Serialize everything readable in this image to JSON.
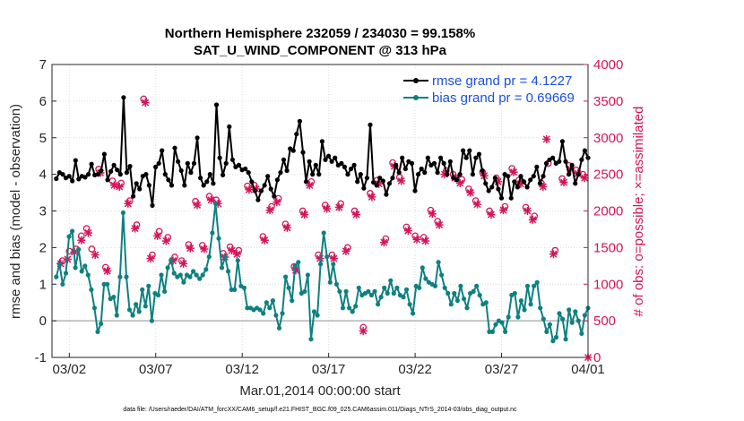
{
  "chart_data": {
    "type": "line",
    "title": "Northern Hemisphere 232059 / 234030 = 99.158%",
    "subtitle": "SAT_U_WIND_COMPONENT @ 313 hPa",
    "xlabel": "Mar.01,2014 00:00:00 start",
    "ylabel_left": "rmse and bias (model - observation)",
    "ylabel_right": "# of obs: o=possible; ×=assimilated",
    "x_range_days": [
      0.5,
      31.5
    ],
    "x_tick_labels": [
      "03/02",
      "03/07",
      "03/12",
      "03/17",
      "03/22",
      "03/27",
      "04/01"
    ],
    "x_tick_days": [
      1.5,
      6.5,
      11.5,
      16.5,
      21.5,
      26.5,
      31.5
    ],
    "ylim_left": [
      -1,
      7
    ],
    "yticks_left": [
      "-1",
      "0",
      "1",
      "2",
      "3",
      "4",
      "5",
      "6",
      "7"
    ],
    "ylim_right": [
      0,
      4000
    ],
    "yticks_right": [
      "0",
      "500",
      "1000",
      "1500",
      "2000",
      "2500",
      "3000",
      "3500",
      "4000"
    ],
    "zero_line": 0,
    "series": [
      {
        "name": "rmse grand pr = 4.1227",
        "color": "#000000",
        "values": [
          3.88,
          4.05,
          4.0,
          3.9,
          3.95,
          3.82,
          4.38,
          3.87,
          3.95,
          3.92,
          4.0,
          4.28,
          3.98,
          4.0,
          4.1,
          4.55,
          3.85,
          4.08,
          4.25,
          4.12,
          4.0,
          6.1,
          4.05,
          4.22,
          3.4,
          3.75,
          3.6,
          3.95,
          4.0,
          3.7,
          3.15,
          4.2,
          4.3,
          4.65,
          4.0,
          3.85,
          3.7,
          4.72,
          4.35,
          4.1,
          3.7,
          4.3,
          4.05,
          4.3,
          5.0,
          3.9,
          3.7,
          3.8,
          4.0,
          3.75,
          5.9,
          4.45,
          3.98,
          4.3,
          5.3,
          4.4,
          4.2,
          4.25,
          4.12,
          4.15,
          4.05,
          3.8,
          3.55,
          3.3,
          3.55,
          3.7,
          3.95,
          3.6,
          3.4,
          3.85,
          4.05,
          4.4,
          4.1,
          4.7,
          4.65,
          5.1,
          5.45,
          4.6,
          3.8,
          4.35,
          4.0,
          4.25,
          4.0,
          4.9,
          4.4,
          4.5,
          4.35,
          4.45,
          4.25,
          4.3,
          4.2,
          4.0,
          4.15,
          4.25,
          3.8,
          4.0,
          3.62,
          3.9,
          5.35,
          3.78,
          3.7,
          3.9,
          3.82,
          3.45,
          3.75,
          3.9,
          4.25,
          4.05,
          4.45,
          4.15,
          4.35,
          4.3,
          3.55,
          4.0,
          4.15,
          4.05,
          4.45,
          4.25,
          4.3,
          4.05,
          4.45,
          4.3,
          4.0,
          4.35,
          3.9,
          3.85,
          4.0,
          4.65,
          4.45,
          4.65,
          4.0,
          4.45,
          4.55,
          4.1,
          3.75,
          3.55,
          3.65,
          3.9,
          3.6,
          3.35,
          4.0,
          3.95,
          3.35,
          3.8,
          3.65,
          3.95,
          3.8,
          3.65,
          3.85,
          3.95,
          4.2,
          3.75,
          3.95,
          4.3,
          4.4,
          4.45,
          4.3,
          4.35,
          4.9,
          4.35,
          4.0,
          4.25,
          3.75,
          4.0,
          4.4,
          4.65,
          4.45
        ]
      },
      {
        "name": "bias grand pr = 0.69669",
        "color": "#0f8080",
        "values": [
          1.2,
          1.55,
          1.0,
          1.3,
          2.3,
          2.45,
          1.45,
          1.95,
          1.35,
          1.5,
          1.25,
          0.85,
          0.35,
          -0.3,
          -0.08,
          1.0,
          1.0,
          0.6,
          0.65,
          0.15,
          1.2,
          2.95,
          1.2,
          0.3,
          0.15,
          0.45,
          0.25,
          0.85,
          0.4,
          0.95,
          0.0,
          0.75,
          0.7,
          1.25,
          0.8,
          1.45,
          1.65,
          1.3,
          1.2,
          1.25,
          1.05,
          1.25,
          1.2,
          1.35,
          1.25,
          1.15,
          1.25,
          1.4,
          1.75,
          2.4,
          3.2,
          2.25,
          1.45,
          1.75,
          1.35,
          0.85,
          0.85,
          1.65,
          0.95,
          0.9,
          0.35,
          0.35,
          0.3,
          0.35,
          0.3,
          0.2,
          0.5,
          0.35,
          0.55,
          0.15,
          -0.2,
          0.2,
          1.2,
          0.9,
          0.55,
          1.5,
          1.6,
          0.75,
          0.8,
          1.25,
          -0.5,
          0.25,
          0.15,
          1.55,
          2.4,
          1.75,
          1.05,
          1.55,
          1.0,
          0.8,
          0.35,
          0.8,
          0.35,
          0.25,
          0.4,
          0.9,
          0.7,
          0.75,
          0.8,
          0.7,
          0.8,
          0.45,
          0.65,
          0.9,
          0.75,
          1.1,
          0.75,
          0.9,
          0.7,
          0.65,
          0.85,
          0.45,
          0.2,
          0.95,
          0.9,
          1.45,
          1.15,
          1.05,
          1.0,
          0.95,
          1.6,
          1.25,
          0.9,
          0.75,
          0.45,
          0.75,
          0.55,
          0.95,
          0.6,
          0.35,
          0.75,
          0.8,
          0.95,
          0.7,
          0.45,
          0.5,
          -0.3,
          -0.3,
          -0.1,
          0.0,
          -0.05,
          -0.3,
          0.1,
          0.7,
          0.75,
          0.1,
          0.55,
          0.3,
          0.95,
          0.45,
          0.95,
          1.05,
          0.35,
          0.05,
          -0.3,
          -0.1,
          -0.55,
          -0.45,
          0.2,
          0.05,
          -0.5,
          0.3,
          -0.05,
          0.25,
          0.0,
          -0.35,
          0.15,
          0.35
        ]
      }
    ],
    "obs_series": [
      {
        "name": "possible",
        "marker": "o",
        "color": "#d4145a",
        "points": [
          [
            1.1,
            1320
          ],
          [
            1.5,
            1450
          ],
          [
            1.9,
            1480
          ],
          [
            2.2,
            1660
          ],
          [
            2.5,
            1760
          ],
          [
            2.8,
            1480
          ],
          [
            3.2,
            2570
          ],
          [
            3.6,
            1230
          ],
          [
            4.0,
            2410
          ],
          [
            4.5,
            2380
          ],
          [
            5.0,
            2140
          ],
          [
            5.4,
            1810
          ],
          [
            5.8,
            3530
          ],
          [
            6.3,
            1400
          ],
          [
            6.7,
            1720
          ],
          [
            7.2,
            1640
          ],
          [
            7.6,
            1370
          ],
          [
            8.0,
            1320
          ],
          [
            8.4,
            1540
          ],
          [
            8.8,
            2130
          ],
          [
            9.2,
            1530
          ],
          [
            9.6,
            2200
          ],
          [
            10.0,
            2150
          ],
          [
            10.4,
            1420
          ],
          [
            10.8,
            1510
          ],
          [
            11.3,
            1460
          ],
          [
            11.8,
            2340
          ],
          [
            12.2,
            2350
          ],
          [
            12.7,
            1650
          ],
          [
            13.2,
            2060
          ],
          [
            13.6,
            2170
          ],
          [
            14.0,
            1820
          ],
          [
            14.5,
            1240
          ],
          [
            15.0,
            2000
          ],
          [
            15.5,
            2400
          ],
          [
            15.9,
            1400
          ],
          [
            16.3,
            2080
          ],
          [
            16.7,
            1400
          ],
          [
            17.2,
            2100
          ],
          [
            17.6,
            1500
          ],
          [
            18.0,
            2000
          ],
          [
            18.5,
            410
          ],
          [
            18.9,
            2240
          ],
          [
            19.3,
            2420
          ],
          [
            19.8,
            1620
          ],
          [
            20.2,
            2660
          ],
          [
            20.6,
            2460
          ],
          [
            21.0,
            1780
          ],
          [
            21.5,
            1660
          ],
          [
            22.0,
            1640
          ],
          [
            22.4,
            2010
          ],
          [
            22.8,
            1860
          ],
          [
            23.3,
            2550
          ],
          [
            23.7,
            2500
          ],
          [
            24.2,
            2430
          ],
          [
            24.6,
            2300
          ],
          [
            25.0,
            2140
          ],
          [
            25.4,
            2530
          ],
          [
            25.8,
            2000
          ],
          [
            26.2,
            2450
          ],
          [
            26.7,
            2060
          ],
          [
            27.1,
            2580
          ],
          [
            27.5,
            2420
          ],
          [
            27.9,
            2050
          ],
          [
            28.4,
            1930
          ],
          [
            28.8,
            2380
          ],
          [
            29.2,
            2650
          ],
          [
            29.6,
            1460
          ],
          [
            30.0,
            2440
          ],
          [
            30.4,
            2620
          ],
          [
            30.8,
            2560
          ],
          [
            31.2,
            2500
          ]
        ]
      },
      {
        "name": "assimilated",
        "marker": "x",
        "color": "#d4145a",
        "points": [
          [
            1.0,
            1280
          ],
          [
            1.4,
            1340
          ],
          [
            1.8,
            1440
          ],
          [
            2.2,
            1600
          ],
          [
            2.6,
            1700
          ],
          [
            3.0,
            1400
          ],
          [
            3.3,
            2520
          ],
          [
            3.7,
            1180
          ],
          [
            4.1,
            2350
          ],
          [
            4.4,
            2330
          ],
          [
            4.9,
            2100
          ],
          [
            5.3,
            1760
          ],
          [
            5.9,
            3480
          ],
          [
            6.2,
            1350
          ],
          [
            6.6,
            1660
          ],
          [
            7.1,
            1590
          ],
          [
            7.5,
            1320
          ],
          [
            8.1,
            1280
          ],
          [
            8.5,
            1490
          ],
          [
            8.9,
            2080
          ],
          [
            9.3,
            1480
          ],
          [
            9.7,
            2150
          ],
          [
            10.1,
            2100
          ],
          [
            10.5,
            1370
          ],
          [
            10.9,
            1460
          ],
          [
            11.2,
            1410
          ],
          [
            11.9,
            2290
          ],
          [
            12.3,
            2300
          ],
          [
            12.8,
            1600
          ],
          [
            13.1,
            2010
          ],
          [
            13.5,
            2120
          ],
          [
            14.1,
            1770
          ],
          [
            14.6,
            1190
          ],
          [
            15.1,
            1950
          ],
          [
            15.4,
            2350
          ],
          [
            16.0,
            1350
          ],
          [
            16.4,
            2030
          ],
          [
            16.8,
            1350
          ],
          [
            17.1,
            2050
          ],
          [
            17.5,
            1450
          ],
          [
            18.1,
            1950
          ],
          [
            18.5,
            360
          ],
          [
            19.0,
            2190
          ],
          [
            19.4,
            2370
          ],
          [
            19.7,
            1570
          ],
          [
            20.3,
            2610
          ],
          [
            20.7,
            2410
          ],
          [
            21.1,
            1730
          ],
          [
            21.6,
            1610
          ],
          [
            22.1,
            1590
          ],
          [
            22.5,
            1960
          ],
          [
            22.9,
            1810
          ],
          [
            23.2,
            2500
          ],
          [
            23.8,
            2450
          ],
          [
            24.1,
            2380
          ],
          [
            24.7,
            2250
          ],
          [
            25.1,
            2090
          ],
          [
            25.5,
            2480
          ],
          [
            25.9,
            1950
          ],
          [
            26.3,
            2400
          ],
          [
            26.6,
            2010
          ],
          [
            27.2,
            2530
          ],
          [
            27.6,
            2370
          ],
          [
            28.0,
            2000
          ],
          [
            28.3,
            1880
          ],
          [
            28.9,
            2330
          ],
          [
            29.1,
            2980
          ],
          [
            29.5,
            1410
          ],
          [
            30.1,
            2390
          ],
          [
            30.5,
            2570
          ],
          [
            30.9,
            2510
          ],
          [
            31.3,
            2450
          ],
          [
            31.5,
            0
          ]
        ]
      }
    ],
    "legend_position": "top-right"
  },
  "footnote": "data file: /Users/raeder/DAI/ATM_forcXX/CAM6_setup/f.e21.FHIST_BGC.f09_025.CAM6assim.011/Diags_NTrS_2014-03/obs_diag_output.nc"
}
